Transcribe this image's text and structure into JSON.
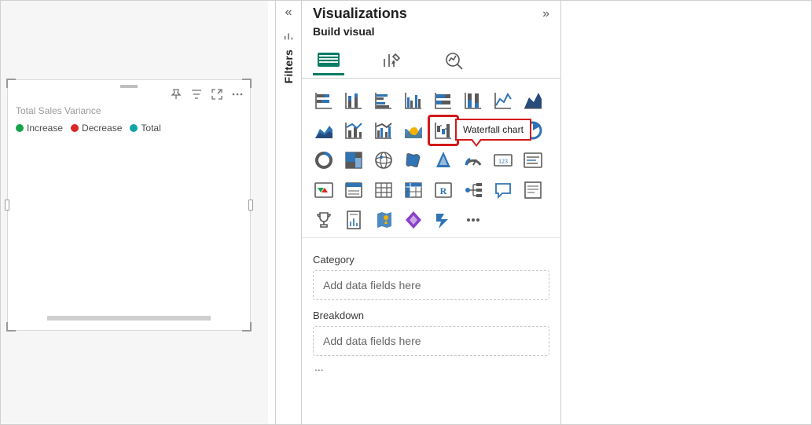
{
  "colors": {
    "accent": "#0b7c66",
    "outline": "#d11a1a",
    "icon_gray": "#595959",
    "icon_blue": "#2f74b5",
    "icon_yellow": "#f2b200",
    "icon_purple": "#8a3ec9",
    "icon_navy": "#264a7a"
  },
  "canvas_card": {
    "title": "Total Sales Variance",
    "legend": [
      {
        "label": "Increase",
        "color": "#16a34a"
      },
      {
        "label": "Decrease",
        "color": "#dc2626"
      },
      {
        "label": "Total",
        "color": "#0ea5a3"
      }
    ]
  },
  "filters_rail": {
    "label": "Filters"
  },
  "viz_pane": {
    "title": "Visualizations",
    "subtitle": "Build visual",
    "tooltip": "Waterfall chart",
    "wells": [
      {
        "label": "Category",
        "placeholder": "Add data fields here"
      },
      {
        "label": "Breakdown",
        "placeholder": "Add data fields here"
      }
    ],
    "more": "...",
    "icons": [
      {
        "name": "stacked-bar-horizontal-icon"
      },
      {
        "name": "stacked-bar-vertical-icon"
      },
      {
        "name": "clustered-bar-horizontal-icon"
      },
      {
        "name": "clustered-bar-vertical-icon"
      },
      {
        "name": "100pct-bar-horizontal-icon"
      },
      {
        "name": "100pct-bar-vertical-icon"
      },
      {
        "name": "line-chart-icon"
      },
      {
        "name": "area-chart-icon"
      },
      {
        "name": "stacked-area-icon"
      },
      {
        "name": "line-stacked-column-icon"
      },
      {
        "name": "line-clustered-column-icon"
      },
      {
        "name": "ribbon-chart-icon"
      },
      {
        "name": "waterfall-chart-icon"
      },
      {
        "name": "funnel-chart-icon"
      },
      {
        "name": "scatter-chart-icon"
      },
      {
        "name": "pie-chart-icon"
      },
      {
        "name": "donut-chart-icon"
      },
      {
        "name": "treemap-icon"
      },
      {
        "name": "map-globe-icon"
      },
      {
        "name": "filled-map-icon"
      },
      {
        "name": "azure-map-icon"
      },
      {
        "name": "gauge-icon"
      },
      {
        "name": "card-123-icon"
      },
      {
        "name": "multirow-card-icon"
      },
      {
        "name": "kpi-icon"
      },
      {
        "name": "slicer-icon"
      },
      {
        "name": "table-icon"
      },
      {
        "name": "matrix-icon"
      },
      {
        "name": "r-visual-icon"
      },
      {
        "name": "decomposition-tree-icon"
      },
      {
        "name": "qna-visual-icon"
      },
      {
        "name": "narrative-icon"
      },
      {
        "name": "goals-trophy-icon"
      },
      {
        "name": "paginated-report-icon"
      },
      {
        "name": "arcgis-map-icon"
      },
      {
        "name": "powerapps-icon"
      },
      {
        "name": "powerautomate-icon"
      },
      {
        "name": "more-visuals-icon"
      }
    ]
  }
}
